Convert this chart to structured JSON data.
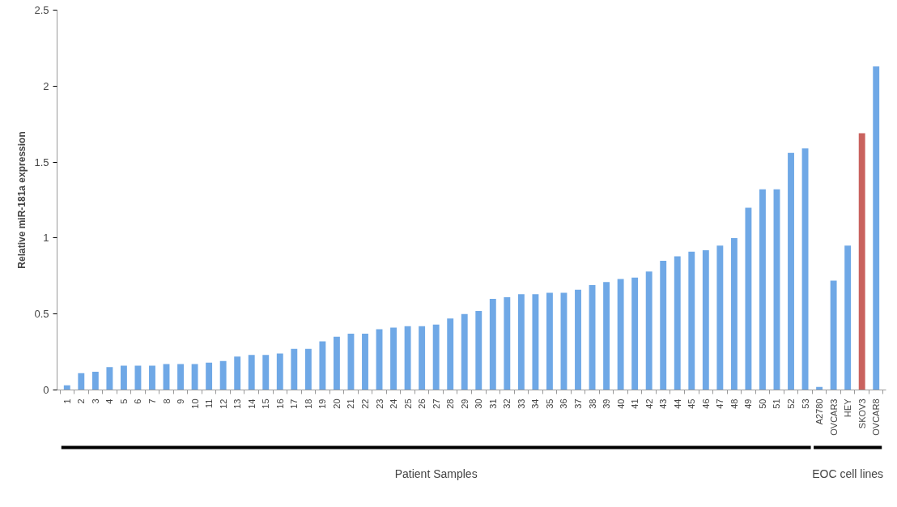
{
  "chart_data": {
    "type": "bar",
    "ylabel": "Relative miR-181a expression",
    "categories": [
      "1",
      "2",
      "3",
      "4",
      "5",
      "6",
      "7",
      "8",
      "9",
      "10",
      "11",
      "12",
      "13",
      "14",
      "15",
      "16",
      "17",
      "18",
      "19",
      "20",
      "21",
      "22",
      "23",
      "24",
      "25",
      "26",
      "27",
      "28",
      "29",
      "30",
      "31",
      "32",
      "33",
      "34",
      "35",
      "36",
      "37",
      "38",
      "39",
      "40",
      "41",
      "42",
      "43",
      "44",
      "45",
      "46",
      "47",
      "48",
      "49",
      "50",
      "51",
      "52",
      "53",
      "A2780",
      "OVCAR3",
      "HEY",
      "SKOV3",
      "OVCAR8"
    ],
    "values": [
      0.03,
      0.11,
      0.12,
      0.15,
      0.16,
      0.16,
      0.16,
      0.17,
      0.17,
      0.17,
      0.18,
      0.19,
      0.22,
      0.23,
      0.23,
      0.24,
      0.27,
      0.27,
      0.32,
      0.35,
      0.37,
      0.37,
      0.4,
      0.41,
      0.42,
      0.42,
      0.43,
      0.47,
      0.5,
      0.52,
      0.6,
      0.61,
      0.63,
      0.63,
      0.64,
      0.64,
      0.66,
      0.69,
      0.71,
      0.73,
      0.74,
      0.78,
      0.85,
      0.88,
      0.91,
      0.92,
      0.95,
      1.0,
      1.2,
      1.32,
      1.32,
      1.56,
      1.59,
      0.02,
      0.72,
      0.95,
      1.69,
      2.13
    ],
    "colors": [
      "#6fa8e6",
      "#6fa8e6",
      "#6fa8e6",
      "#6fa8e6",
      "#6fa8e6",
      "#6fa8e6",
      "#6fa8e6",
      "#6fa8e6",
      "#6fa8e6",
      "#6fa8e6",
      "#6fa8e6",
      "#6fa8e6",
      "#6fa8e6",
      "#6fa8e6",
      "#6fa8e6",
      "#6fa8e6",
      "#6fa8e6",
      "#6fa8e6",
      "#6fa8e6",
      "#6fa8e6",
      "#6fa8e6",
      "#6fa8e6",
      "#6fa8e6",
      "#6fa8e6",
      "#6fa8e6",
      "#6fa8e6",
      "#6fa8e6",
      "#6fa8e6",
      "#6fa8e6",
      "#6fa8e6",
      "#6fa8e6",
      "#6fa8e6",
      "#6fa8e6",
      "#6fa8e6",
      "#6fa8e6",
      "#6fa8e6",
      "#6fa8e6",
      "#6fa8e6",
      "#6fa8e6",
      "#6fa8e6",
      "#6fa8e6",
      "#6fa8e6",
      "#6fa8e6",
      "#6fa8e6",
      "#6fa8e6",
      "#6fa8e6",
      "#6fa8e6",
      "#6fa8e6",
      "#6fa8e6",
      "#6fa8e6",
      "#6fa8e6",
      "#6fa8e6",
      "#6fa8e6",
      "#6fa8e6",
      "#6fa8e6",
      "#6fa8e6",
      "#c9625e",
      "#6fa8e6"
    ],
    "ylim": [
      0,
      2.5
    ],
    "yticks": [
      0,
      0.5,
      1,
      1.5,
      2,
      2.5
    ],
    "grid": false,
    "annotations": [
      "Patient Samples",
      "EOC cell lines"
    ]
  }
}
